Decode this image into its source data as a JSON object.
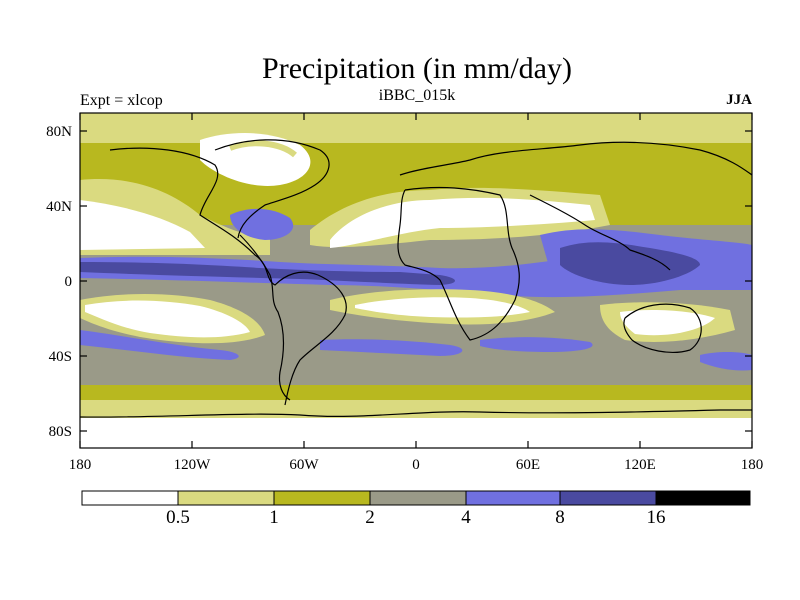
{
  "title": "Precipitation (in mm/day)",
  "left_label": "Expt = xlcop",
  "center_label": "iBBC_015k",
  "right_label": "JJA",
  "lat_labels": [
    "80N",
    "40N",
    "0",
    "40S",
    "80S"
  ],
  "lon_labels": [
    "180",
    "120W",
    "60W",
    "0",
    "60E",
    "120E",
    "180"
  ],
  "colorbar": {
    "colors": [
      "#ffffff",
      "#dada80",
      "#b8b81f",
      "#9a9a88",
      "#7070e0",
      "#4a4aa0",
      "#000000"
    ],
    "labels": [
      "0.5",
      "1",
      "2",
      "4",
      "8",
      "16"
    ]
  }
}
